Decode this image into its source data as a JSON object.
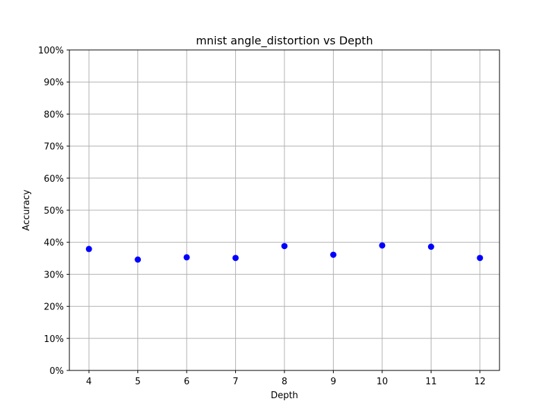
{
  "chart_data": {
    "type": "scatter",
    "title": "mnist angle_distortion vs Depth",
    "xlabel": "Depth",
    "ylabel": "Accuracy",
    "xlim": [
      3.6,
      12.4
    ],
    "ylim": [
      0,
      1
    ],
    "x_ticks": [
      4,
      5,
      6,
      7,
      8,
      9,
      10,
      11,
      12
    ],
    "y_ticks": [
      0,
      0.1,
      0.2,
      0.3,
      0.4,
      0.5,
      0.6,
      0.7,
      0.8,
      0.9,
      1.0
    ],
    "y_tick_labels": [
      "0%",
      "10%",
      "20%",
      "30%",
      "40%",
      "50%",
      "60%",
      "70%",
      "80%",
      "90%",
      "100%"
    ],
    "grid": true,
    "marker_color": "#0000ff",
    "grid_color": "#b0b0b0",
    "series": [
      {
        "x": [
          4,
          5,
          6,
          7,
          8,
          9,
          10,
          11,
          12
        ],
        "y": [
          0.379,
          0.346,
          0.353,
          0.351,
          0.388,
          0.361,
          0.39,
          0.386,
          0.351
        ]
      }
    ]
  }
}
